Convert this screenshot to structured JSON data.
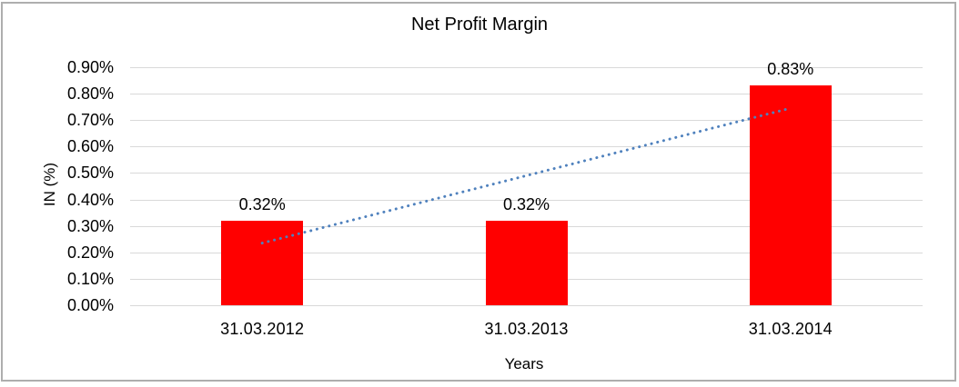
{
  "frame": {
    "background": "#FFFFFF",
    "border_color": "#AEAEAE"
  },
  "chart_data": {
    "type": "bar",
    "title": "Net Profit Margin",
    "xlabel": "Years",
    "ylabel": "IN (%)",
    "categories": [
      "31.03.2012",
      "31.03.2013",
      "31.03.2014"
    ],
    "values": [
      0.32,
      0.32,
      0.83
    ],
    "value_labels": [
      "0.32%",
      "0.32%",
      "0.83%"
    ],
    "ylim": [
      0,
      0.9
    ],
    "ytick_step": 0.1,
    "ytick_labels": [
      "0.00%",
      "0.10%",
      "0.20%",
      "0.30%",
      "0.40%",
      "0.50%",
      "0.60%",
      "0.70%",
      "0.80%",
      "0.90%"
    ],
    "bar_color": "#FF0000",
    "grid": true,
    "gridline_color": "#D9D9D9",
    "legend": "none",
    "trendline": {
      "type": "linear",
      "style": "dotted",
      "color": "#4F81BD",
      "start_value": 0.235,
      "end_value": 0.745
    }
  }
}
